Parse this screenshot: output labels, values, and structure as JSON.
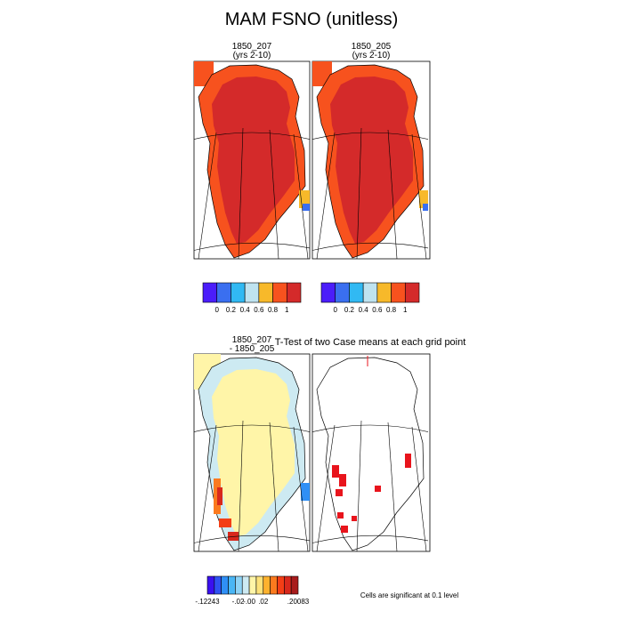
{
  "title": "MAM FSNO (unitless)",
  "panels": [
    {
      "title": "1850_207",
      "subtitle": "(yrs 2-10)"
    },
    {
      "title": "1850_205",
      "subtitle": "(yrs 2-10)"
    },
    {
      "title": "1850_207",
      "subtitle": "- 1850_205"
    },
    {
      "title": "T-Test of two Case means at each grid point"
    }
  ],
  "colorbars": [
    {
      "colors": [
        "#4b1dfa",
        "#3a6ff0",
        "#31b9f3",
        "#bfe3f0",
        "#f7b92a",
        "#f7521e",
        "#d42a2a"
      ],
      "labels": [
        "0",
        "0.2",
        "0.4",
        "0.6",
        "0.8",
        "1"
      ]
    },
    {
      "colors": [
        "#4b1dfa",
        "#3a6ff0",
        "#31b9f3",
        "#bfe3f0",
        "#f7b92a",
        "#f7521e",
        "#d42a2a"
      ],
      "labels": [
        "0",
        "0.2",
        "0.4",
        "0.6",
        "0.8",
        "1"
      ]
    },
    {
      "colors": [
        "#3a10f0",
        "#2f52f2",
        "#2f8ff5",
        "#49b6f5",
        "#8fd3f5",
        "#cdeaf2",
        "#fff5a8",
        "#fde27a",
        "#fdb22e",
        "#fb7a1e",
        "#f33e16",
        "#d8281c",
        "#a81c1c"
      ],
      "labels": [
        "-.12243",
        "-.02",
        "-.00",
        ".02",
        ".20083"
      ]
    }
  ],
  "note": "Cells are significant at 0.1 level"
}
